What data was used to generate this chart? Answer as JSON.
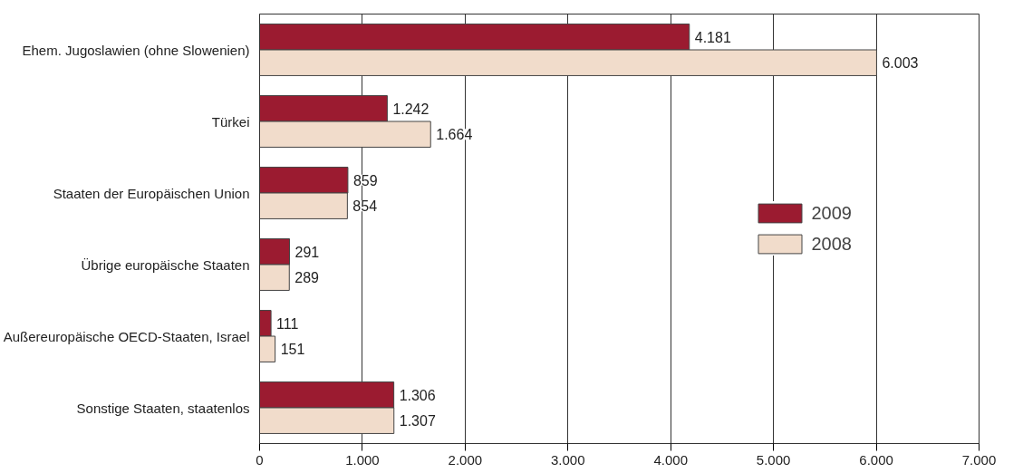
{
  "chart_data": {
    "type": "bar",
    "orientation": "horizontal",
    "categories": [
      "Ehem. Jugoslawien (ohne Slowenien)",
      "Türkei",
      "Staaten der Europäischen Union",
      "Übrige europäische Staaten",
      "Außereuropäische OECD-Staaten, Israel",
      "Sonstige Staaten, staatenlos"
    ],
    "series": [
      {
        "name": "2009",
        "color": "#9b1b30",
        "values": [
          4181,
          1242,
          859,
          291,
          111,
          1306
        ],
        "value_labels": [
          "4.181",
          "1.242",
          "859",
          "291",
          "111",
          "1.306"
        ]
      },
      {
        "name": "2008",
        "color": "#f1dccb",
        "values": [
          6003,
          1664,
          854,
          289,
          151,
          1307
        ],
        "value_labels": [
          "6.003",
          "1.664",
          "854",
          "289",
          "151",
          "1.307"
        ]
      }
    ],
    "xlim": [
      0,
      7000
    ],
    "xticks": [
      0,
      {
        "value": 1000,
        "label": "1.000"
      },
      {
        "value": 2000,
        "label": "2.000"
      },
      {
        "value": 3000,
        "label": "3.000"
      },
      {
        "value": 4000,
        "label": "4.000"
      },
      {
        "value": 5000,
        "label": "5.000"
      },
      {
        "value": 6000,
        "label": "6.000"
      },
      {
        "value": 7000,
        "label": "7.000"
      }
    ],
    "grid": "x",
    "legend": "right"
  }
}
